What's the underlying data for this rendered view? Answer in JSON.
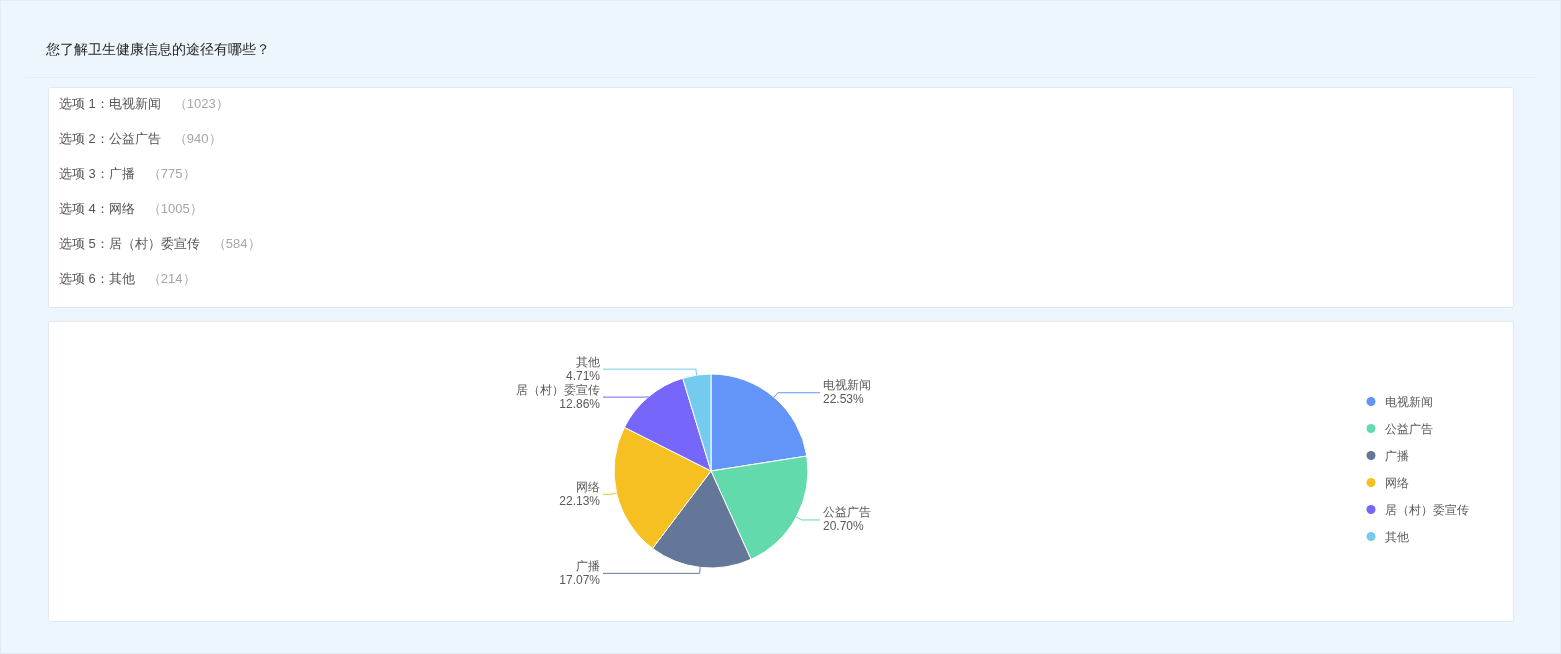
{
  "chart_data": [
    {
      "type": "other",
      "title": "您了解卫生健康信息的途径有哪些？",
      "annotations": [
        "选项 1：电视新闻",
        "（1023）",
        "选项 2：公益广告",
        "（940）",
        "选项 3：广播",
        "（775）",
        "选项 4：网络",
        "（1005）",
        "选项 5：居（村）委宣传",
        "（584）",
        "选项 6：其他",
        "（214）"
      ]
    },
    {
      "type": "pie",
      "categories": [
        "电视新闻",
        "公益广告",
        "广播",
        "网络",
        "居（村）委宣传",
        "其他"
      ],
      "values": [
        22.53,
        20.7,
        17.07,
        22.13,
        12.86,
        4.71
      ],
      "colors": [
        "#6395f9",
        "#62daab",
        "#657798",
        "#f6c022",
        "#7666f9",
        "#74cbed"
      ],
      "value_labels": [
        "22.53%",
        "20.70%",
        "17.07%",
        "22.13%",
        "12.86%",
        "4.71%"
      ],
      "legend": "right"
    }
  ]
}
